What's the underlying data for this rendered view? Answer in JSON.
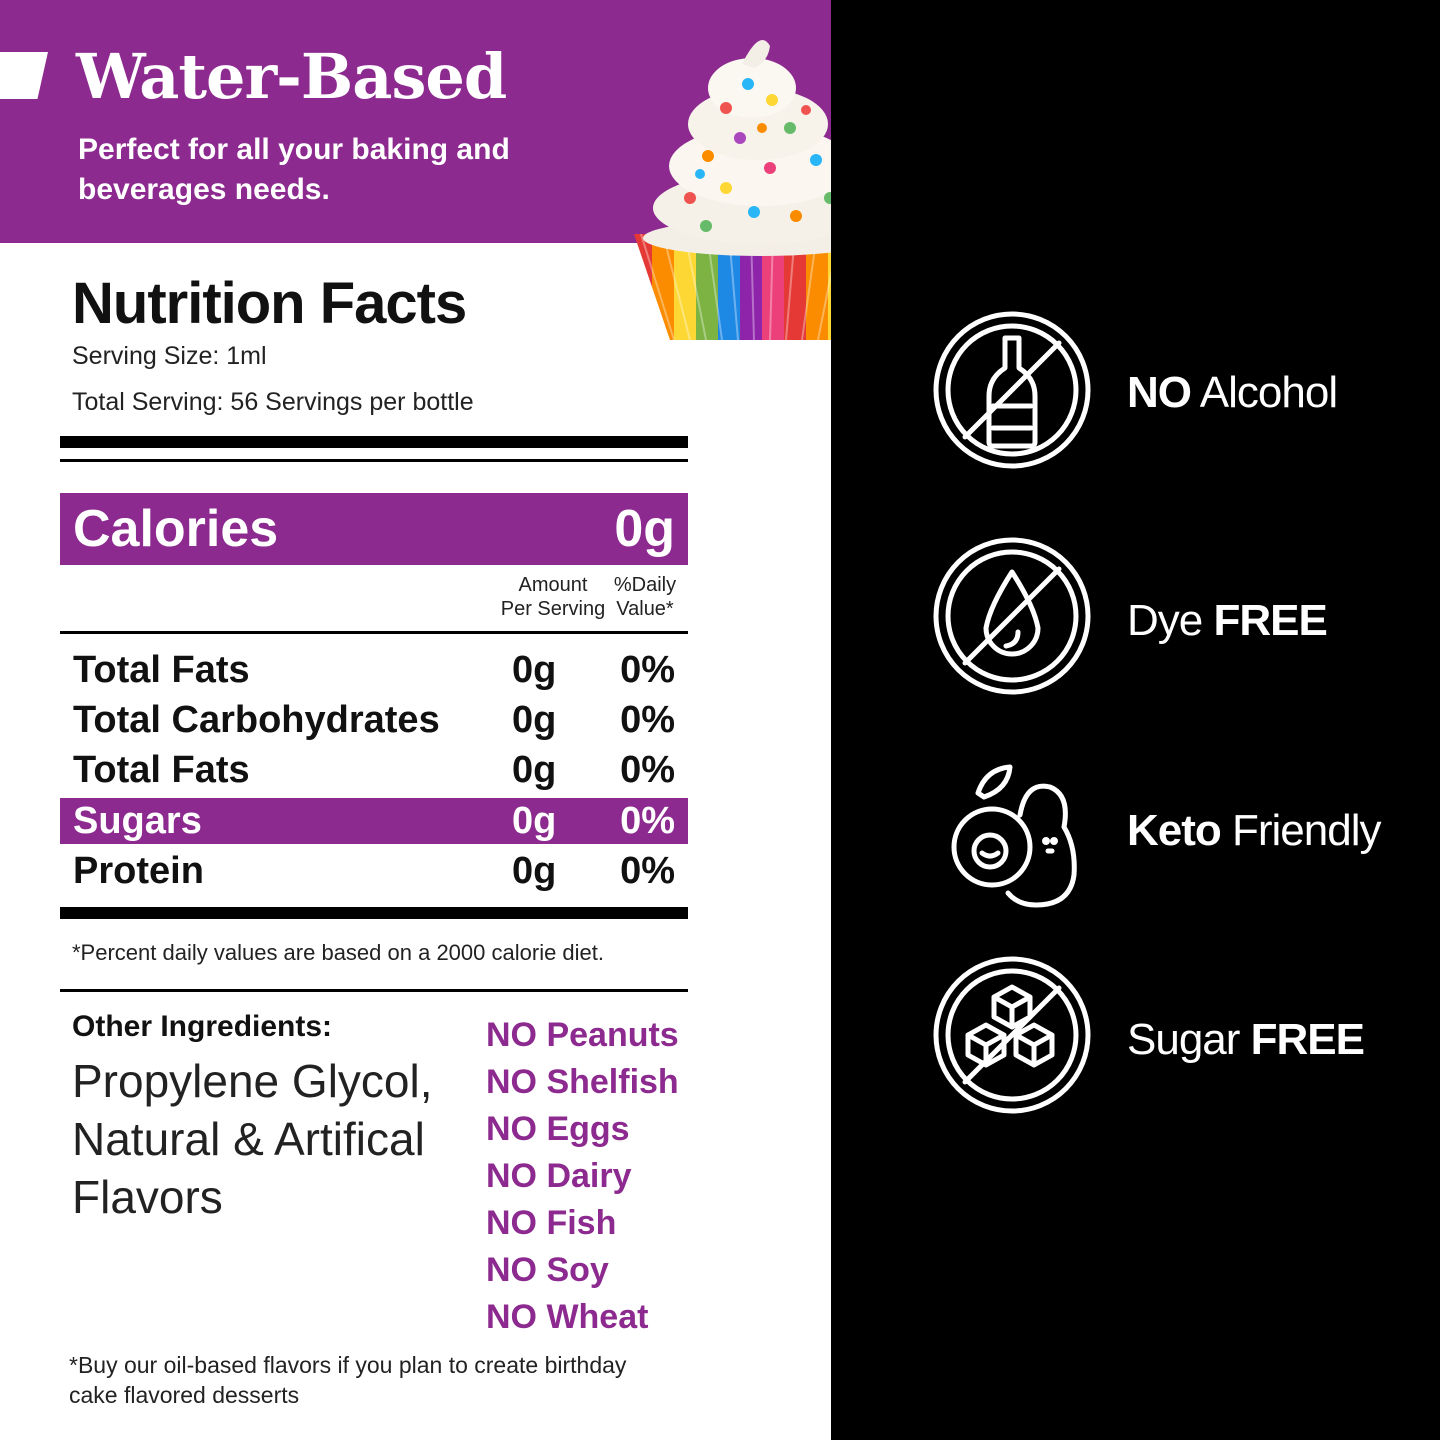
{
  "banner": {
    "title": "Water-Based",
    "subtitle": "Perfect for all your baking and beverages needs."
  },
  "nutrition": {
    "title": "Nutrition Facts",
    "serving_size": "Serving Size: 1ml",
    "total_serving": "Total Serving: 56 Servings per bottle",
    "calories_label": "Calories",
    "calories_value": "0g",
    "col_amount_line1": "Amount",
    "col_amount_line2": "Per Serving",
    "col_daily_line1": "%Daily",
    "col_daily_line2": "Value*",
    "rows": [
      {
        "name": "Total Fats",
        "amount": "0g",
        "percent": "0%"
      },
      {
        "name": "Total Carbohydrates",
        "amount": "0g",
        "percent": "0%"
      },
      {
        "name": "Total Fats",
        "amount": "0g",
        "percent": "0%"
      },
      {
        "name": "Sugars",
        "amount": "0g",
        "percent": "0%"
      },
      {
        "name": "Protein",
        "amount": "0g",
        "percent": "0%"
      }
    ],
    "footnote": "*Percent daily values are based on a 2000 calorie diet."
  },
  "ingredients": {
    "label": "Other Ingredients:",
    "text": "Propylene Glycol, Natural & Artifical Flavors"
  },
  "allergens": [
    "NO Peanuts",
    "NO Shelfish",
    "NO Eggs",
    "NO Dairy",
    "NO Fish",
    "NO Soy",
    "NO Wheat"
  ],
  "bottom_note": "*Buy our oil-based flavors if you plan to create birthday cake flavored desserts",
  "features": [
    {
      "icon": "no-alcohol-icon",
      "bold": "NO",
      "text": " Alcohol",
      "bold_first": true
    },
    {
      "icon": "dye-free-icon",
      "bold": "FREE",
      "text": "Dye ",
      "bold_first": false
    },
    {
      "icon": "keto-avocado-icon",
      "bold": "Keto",
      "text": " Friendly",
      "bold_first": true
    },
    {
      "icon": "sugar-free-icon",
      "bold": "FREE",
      "text": "Sugar ",
      "bold_first": false
    }
  ],
  "colors": {
    "brand_purple": "#8c2a8f",
    "right_panel": "#000000"
  }
}
